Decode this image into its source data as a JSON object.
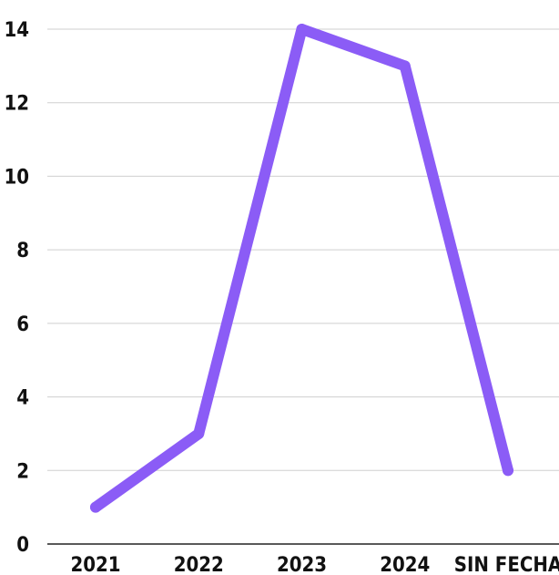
{
  "chart_data": {
    "type": "line",
    "title": "",
    "xlabel": "",
    "ylabel": "",
    "categories": [
      "2021",
      "2022",
      "2023",
      "2024",
      "SIN FECHA"
    ],
    "series": [
      {
        "values": [
          1,
          3,
          14,
          13,
          2
        ]
      }
    ],
    "ylim": [
      0,
      14
    ],
    "yticks": [
      "0",
      "2",
      "4",
      "6",
      "8",
      "10",
      "12",
      "14"
    ],
    "grid": true,
    "legend": "none",
    "colors": {
      "line": "#8b5cf6",
      "grid": "#cfcfcf",
      "axis": "#222222",
      "text": "#111111"
    }
  }
}
